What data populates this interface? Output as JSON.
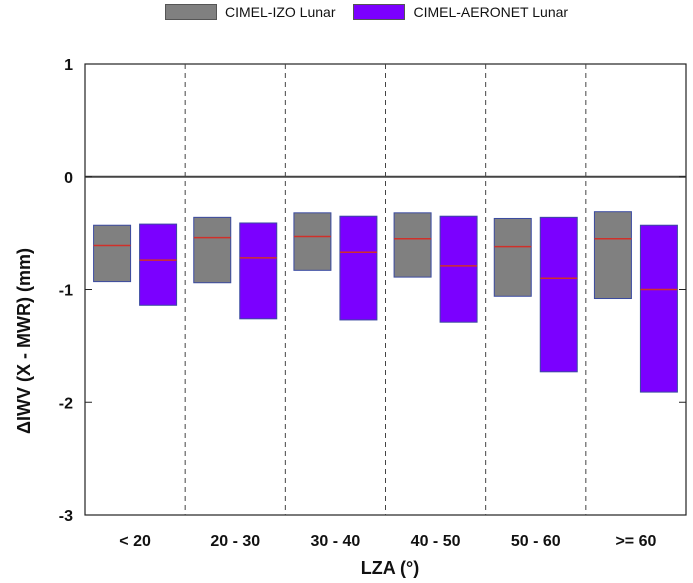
{
  "chart_data": {
    "type": "box",
    "title": "",
    "xlabel": "LZA (°)",
    "ylabel": "ΔIWV (X - MWR) (mm)",
    "categories": [
      "< 20",
      "20 - 30",
      "30 - 40",
      "40 - 50",
      "50 - 60",
      ">= 60"
    ],
    "ylim": [
      -3,
      1
    ],
    "yticks": [
      "-3",
      "-2",
      "-1",
      "0",
      "1"
    ],
    "ytick_values": [
      -3,
      -2,
      -1,
      0,
      1
    ],
    "reference_line": 0,
    "legend_position": "top-center",
    "grid": "vertical dashed separators between categories",
    "series": [
      {
        "name": "CIMEL-IZO Lunar",
        "color": "#808080",
        "q1": [
          -0.93,
          -0.94,
          -0.83,
          -0.89,
          -1.06,
          -1.08
        ],
        "median": [
          -0.61,
          -0.54,
          -0.53,
          -0.55,
          -0.62,
          -0.55
        ],
        "q3": [
          -0.43,
          -0.36,
          -0.32,
          -0.32,
          -0.37,
          -0.31
        ]
      },
      {
        "name": "CIMEL-AERONET Lunar",
        "color": "#7b00ff",
        "q1": [
          -1.14,
          -1.26,
          -1.27,
          -1.29,
          -1.73,
          -1.91
        ],
        "median": [
          -0.74,
          -0.72,
          -0.67,
          -0.79,
          -0.9,
          -1.0
        ],
        "q3": [
          -0.42,
          -0.41,
          -0.35,
          -0.35,
          -0.36,
          -0.43
        ]
      }
    ],
    "median_color": "#d0302a"
  }
}
